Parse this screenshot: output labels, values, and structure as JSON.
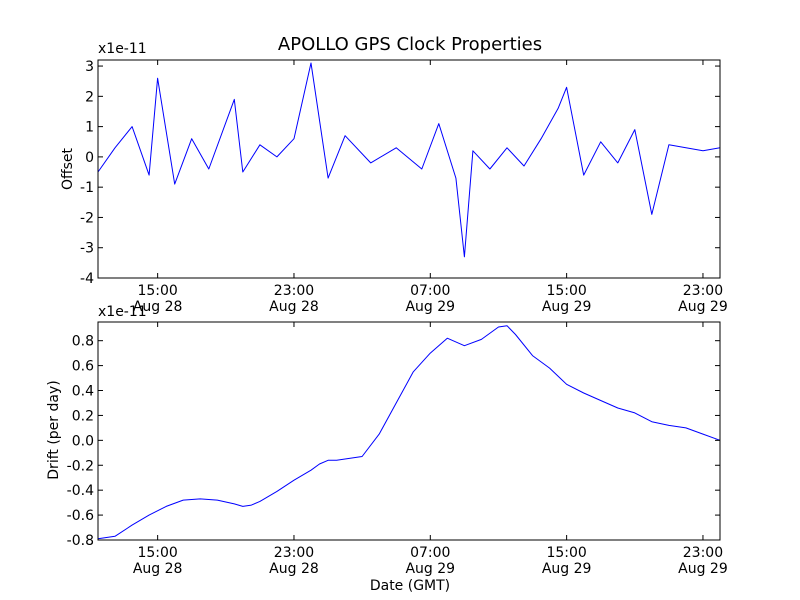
{
  "title": "APOLLO GPS Clock Properties",
  "colors": {
    "series": "#0000ff",
    "axes": "#000000",
    "background": "#ffffff"
  },
  "chart_data": [
    {
      "type": "line",
      "title": "APOLLO GPS Clock Properties",
      "xlabel": "",
      "ylabel": "Offset",
      "multiplier": "x1e-11",
      "xlim": [
        "2010-08-28 11:30",
        "2010-08-30 00:00"
      ],
      "ylim": [
        -4,
        3.2
      ],
      "yticks": [
        -4,
        -3,
        -2,
        -1,
        0,
        1,
        2,
        3
      ],
      "xtick_labels": [
        {
          "time": "15:00",
          "date": "Aug 28"
        },
        {
          "time": "23:00",
          "date": "Aug 28"
        },
        {
          "time": "07:00",
          "date": "Aug 29"
        },
        {
          "time": "15:00",
          "date": "Aug 29"
        },
        {
          "time": "23:00",
          "date": "Aug 29"
        }
      ],
      "grid": false,
      "series": [
        {
          "x": [
            "2010-08-28 11:30",
            "2010-08-28 12:30",
            "2010-08-28 13:30",
            "2010-08-28 14:30",
            "2010-08-28 15:00",
            "2010-08-28 16:00",
            "2010-08-28 17:00",
            "2010-08-28 18:00",
            "2010-08-28 19:30",
            "2010-08-28 20:00",
            "2010-08-28 21:00",
            "2010-08-28 22:00",
            "2010-08-28 23:00",
            "2010-08-29 00:00",
            "2010-08-29 01:00",
            "2010-08-29 02:00",
            "2010-08-29 03:30",
            "2010-08-29 05:00",
            "2010-08-29 06:30",
            "2010-08-29 07:30",
            "2010-08-29 08:30",
            "2010-08-29 09:00",
            "2010-08-29 09:30",
            "2010-08-29 10:30",
            "2010-08-29 11:30",
            "2010-08-29 12:30",
            "2010-08-29 13:30",
            "2010-08-29 14:30",
            "2010-08-29 15:00",
            "2010-08-29 16:00",
            "2010-08-29 17:00",
            "2010-08-29 18:00",
            "2010-08-29 19:00",
            "2010-08-29 20:00",
            "2010-08-29 21:00",
            "2010-08-29 22:00",
            "2010-08-29 23:00",
            "2010-08-30 00:00"
          ],
          "y": [
            -0.5,
            0.3,
            1.0,
            -0.6,
            2.6,
            -0.9,
            0.6,
            -0.4,
            1.9,
            -0.5,
            0.4,
            0.0,
            0.6,
            3.1,
            -0.7,
            0.7,
            -0.2,
            0.3,
            -0.4,
            1.1,
            -0.7,
            -3.3,
            0.2,
            -0.4,
            0.3,
            -0.3,
            0.6,
            1.6,
            2.3,
            -0.6,
            0.5,
            -0.2,
            0.9,
            -1.9,
            0.4,
            0.3,
            0.2,
            0.3
          ]
        }
      ]
    },
    {
      "type": "line",
      "title": "",
      "xlabel": "Date (GMT)",
      "ylabel": "Drift (per day)",
      "multiplier": "x1e-11",
      "xlim": [
        "2010-08-28 11:30",
        "2010-08-30 00:00"
      ],
      "ylim": [
        -0.8,
        0.95
      ],
      "yticks": [
        "-0.8",
        "-0.6",
        "-0.4",
        "-0.2",
        "0.0",
        "0.2",
        "0.4",
        "0.6",
        "0.8"
      ],
      "xtick_labels": [
        {
          "time": "15:00",
          "date": "Aug 28"
        },
        {
          "time": "23:00",
          "date": "Aug 28"
        },
        {
          "time": "07:00",
          "date": "Aug 29"
        },
        {
          "time": "15:00",
          "date": "Aug 29"
        },
        {
          "time": "23:00",
          "date": "Aug 29"
        }
      ],
      "grid": false,
      "series": [
        {
          "x": [
            "2010-08-28 11:30",
            "2010-08-28 12:00",
            "2010-08-28 12:30",
            "2010-08-28 13:30",
            "2010-08-28 14:30",
            "2010-08-28 15:30",
            "2010-08-28 16:30",
            "2010-08-28 17:30",
            "2010-08-28 18:30",
            "2010-08-28 19:30",
            "2010-08-28 20:00",
            "2010-08-28 20:30",
            "2010-08-28 21:00",
            "2010-08-28 22:00",
            "2010-08-28 23:00",
            "2010-08-29 00:00",
            "2010-08-29 00:30",
            "2010-08-29 01:00",
            "2010-08-29 01:30",
            "2010-08-29 02:00",
            "2010-08-29 03:00",
            "2010-08-29 04:00",
            "2010-08-29 05:00",
            "2010-08-29 06:00",
            "2010-08-29 07:00",
            "2010-08-29 08:00",
            "2010-08-29 09:00",
            "2010-08-29 10:00",
            "2010-08-29 11:00",
            "2010-08-29 11:30",
            "2010-08-29 12:00",
            "2010-08-29 13:00",
            "2010-08-29 14:00",
            "2010-08-29 15:00",
            "2010-08-29 16:00",
            "2010-08-29 17:00",
            "2010-08-29 18:00",
            "2010-08-29 19:00",
            "2010-08-29 20:00",
            "2010-08-29 21:00",
            "2010-08-29 22:00",
            "2010-08-29 23:00",
            "2010-08-30 00:00"
          ],
          "y": [
            -0.79,
            -0.78,
            -0.77,
            -0.68,
            -0.6,
            -0.53,
            -0.48,
            -0.47,
            -0.48,
            -0.51,
            -0.53,
            -0.52,
            -0.49,
            -0.41,
            -0.32,
            -0.24,
            -0.19,
            -0.16,
            -0.16,
            -0.15,
            -0.13,
            0.05,
            0.3,
            0.55,
            0.7,
            0.82,
            0.76,
            0.81,
            0.91,
            0.92,
            0.85,
            0.68,
            0.58,
            0.45,
            0.38,
            0.32,
            0.26,
            0.22,
            0.15,
            0.12,
            0.1,
            0.05,
            0.0
          ]
        }
      ]
    }
  ]
}
